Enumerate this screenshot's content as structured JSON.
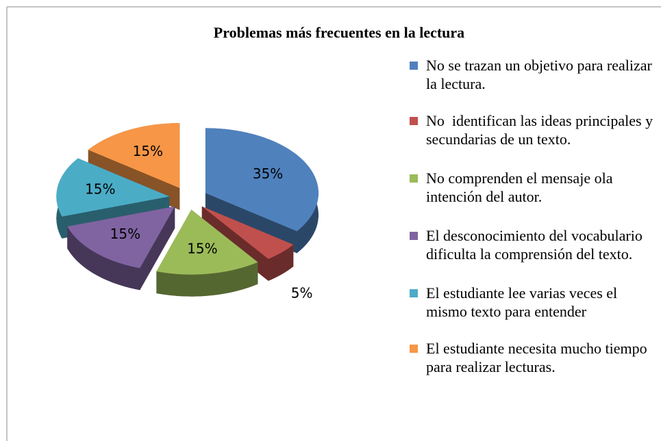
{
  "chart_data": {
    "type": "pie",
    "title": "Problemas más frecuentes en la lectura",
    "categories": [
      "No se trazan un objetivo para realizar la lectura.",
      "No  identifican las ideas principales y secundarias de un texto.",
      "No comprenden el mensaje ola intención del autor.",
      "El desconocimiento del vocabulario dificulta la comprensión del texto.",
      "El estudiante lee varias veces el mismo texto para entender",
      "El estudiante necesita mucho tiempo para realizar lecturas."
    ],
    "values": [
      35,
      5,
      15,
      15,
      15,
      15
    ],
    "value_labels": [
      "35%",
      "5%",
      "15%",
      "15%",
      "15%",
      "15%"
    ],
    "colors": [
      "#4f81bd",
      "#c0504d",
      "#9bbb59",
      "#8064a2",
      "#4bacc6",
      "#f79646"
    ],
    "legend": "right"
  }
}
